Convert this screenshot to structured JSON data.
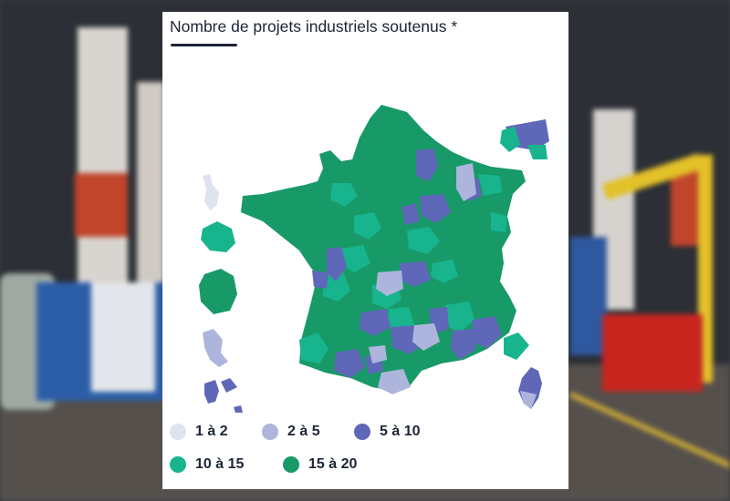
{
  "title": "Nombre de projets industriels soutenus *",
  "colors": {
    "c1": "#dfe3f0",
    "c2": "#aeb5dd",
    "c3": "#5f68b8",
    "c4": "#18b48e",
    "c5": "#189a68",
    "title": "#1d2438"
  },
  "legend": [
    {
      "label": "1 à 2",
      "color": "#dfe3f0"
    },
    {
      "label": "2 à 5",
      "color": "#aeb5dd"
    },
    {
      "label": "5 à 10",
      "color": "#5f68b8"
    },
    {
      "label": "10 à 15",
      "color": "#18b48e"
    },
    {
      "label": "15 à 20",
      "color": "#189a68"
    }
  ]
}
